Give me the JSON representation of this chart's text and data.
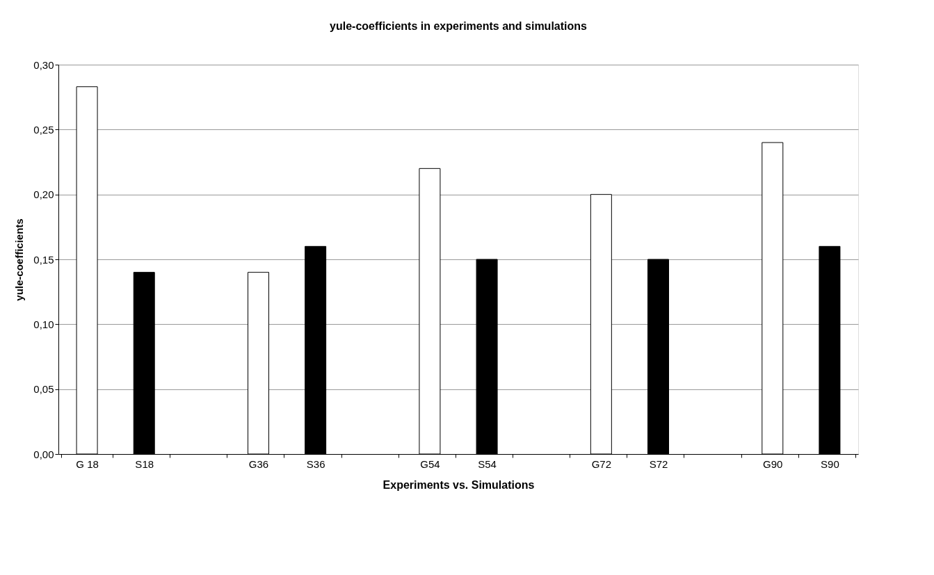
{
  "chart_data": {
    "type": "bar",
    "title": "yule-coefficients in experiments and simulations",
    "xlabel": "Experiments vs. Simulations",
    "ylabel": "yule-coefficients",
    "categories": [
      "G 18",
      "S18",
      null,
      "G36",
      "S36",
      null,
      "G54",
      "S54",
      null,
      "G72",
      "S72",
      null,
      "G90",
      "S90"
    ],
    "values": [
      0.283,
      0.14,
      null,
      0.14,
      0.16,
      null,
      0.22,
      0.15,
      null,
      0.2,
      0.15,
      null,
      0.24,
      0.16
    ],
    "colors": [
      "#ffffff",
      "#000000",
      "#ffffff",
      "#ffffff",
      "#000000",
      "#ffffff",
      "#ffffff",
      "#000000",
      "#ffffff",
      "#ffffff",
      "#000000",
      "#ffffff",
      "#ffffff",
      "#000000"
    ],
    "ylim": [
      0,
      0.3
    ],
    "yticks": [
      {
        "value": 0,
        "label": "0,00"
      },
      {
        "value": 0.05,
        "label": "0,05"
      },
      {
        "value": 0.1,
        "label": "0,10"
      },
      {
        "value": 0.15,
        "label": "0,15"
      },
      {
        "value": 0.2,
        "label": "0,20"
      },
      {
        "value": 0.25,
        "label": "0,25"
      },
      {
        "value": 0.3,
        "label": "0,30"
      }
    ],
    "grid": "y"
  }
}
